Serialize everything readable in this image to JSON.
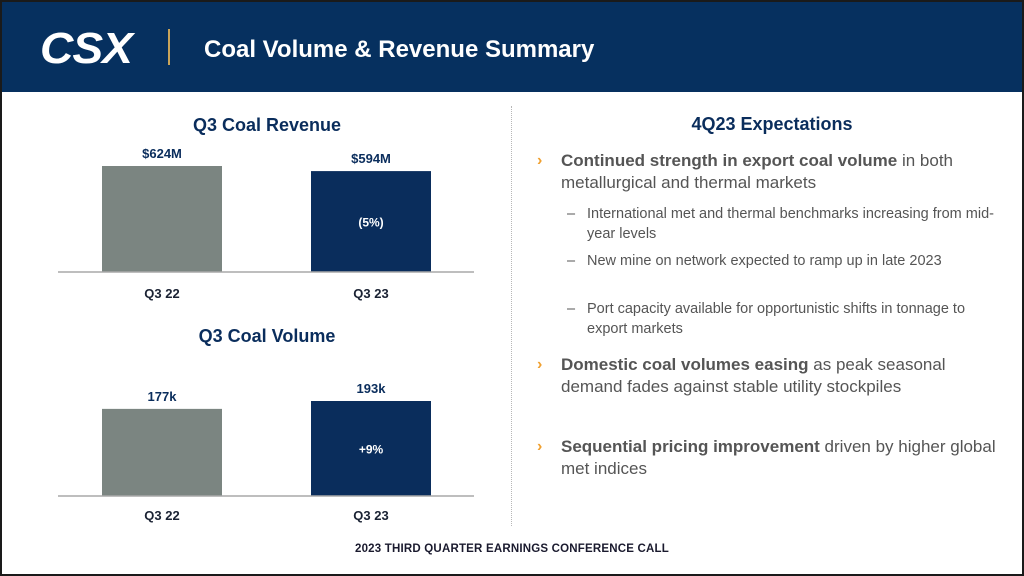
{
  "header": {
    "logo": "CSX",
    "title": "Coal Volume & Revenue Summary"
  },
  "chart_data": [
    {
      "type": "bar",
      "title": "Q3 Coal Revenue",
      "categories": [
        "Q3 22",
        "Q3 23"
      ],
      "values": [
        624,
        594
      ],
      "value_labels": [
        "$624M",
        "$594M"
      ],
      "bar_colors": [
        "#7b8581",
        "#0a2d5c"
      ],
      "inner_labels": [
        "",
        "(5%)"
      ],
      "ylim": [
        0,
        624
      ]
    },
    {
      "type": "bar",
      "title": "Q3 Coal Volume",
      "categories": [
        "Q3 22",
        "Q3 23"
      ],
      "values": [
        177,
        193
      ],
      "value_labels": [
        "177k",
        "193k"
      ],
      "bar_colors": [
        "#7b8581",
        "#0a2d5c"
      ],
      "inner_labels": [
        "",
        "+9%"
      ],
      "ylim": [
        0,
        193
      ]
    }
  ],
  "expectations": {
    "title": "4Q23 Expectations",
    "bullets": [
      {
        "bold": "Continued strength in export coal volume",
        "rest": " in both metallurgical and thermal markets",
        "subs": [
          "International met and thermal benchmarks increasing from mid-year levels",
          "New mine on network expected to ramp up in late 2023",
          "Port capacity available for opportunistic shifts in tonnage to export markets"
        ]
      },
      {
        "bold": "Domestic coal volumes easing",
        "rest": " as peak seasonal demand fades against stable utility stockpiles",
        "subs": []
      },
      {
        "bold": "Sequential pricing improvement",
        "rest": " driven by higher global met indices",
        "subs": []
      }
    ],
    "chevron": "›",
    "dash": "–"
  },
  "footer": "2023 THIRD QUARTER EARNINGS CONFERENCE CALL",
  "colors": {
    "header_bg": "#06305f",
    "navy": "#0a2d5c",
    "gray_bar": "#7b8581",
    "accent": "#f0a030"
  }
}
